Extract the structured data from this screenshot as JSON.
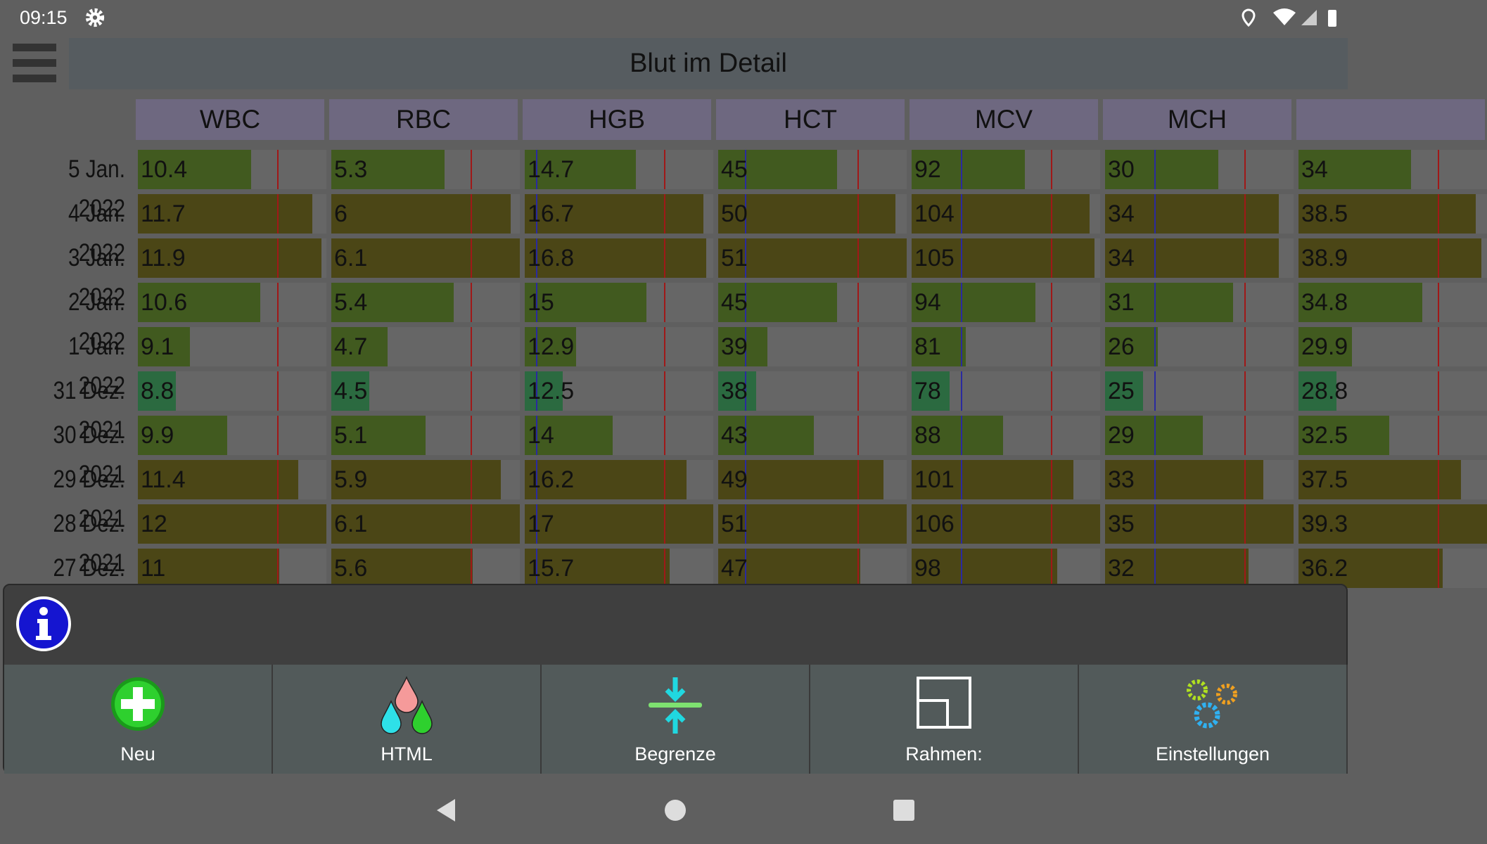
{
  "status_bar": {
    "time": "09:15"
  },
  "header": {
    "title": "Blut im Detail"
  },
  "table": {
    "columns": [
      "WBC",
      "RBC",
      "HGB",
      "HCT",
      "MCV",
      "MCH",
      null
    ],
    "rows": [
      {
        "date": "5 Jan. 2022",
        "values": [
          10.4,
          5.3,
          14.7,
          45,
          92,
          30,
          34
        ]
      },
      {
        "date": "4 Jan. 2022",
        "values": [
          11.7,
          6,
          16.7,
          50,
          104,
          34,
          38.5
        ]
      },
      {
        "date": "3 Jan. 2022",
        "values": [
          11.9,
          6.1,
          16.8,
          51,
          105,
          34,
          38.9
        ]
      },
      {
        "date": "2 Jan. 2022",
        "values": [
          10.6,
          5.4,
          15,
          45,
          94,
          31,
          34.8
        ]
      },
      {
        "date": "1 Jan. 2022",
        "values": [
          9.1,
          4.7,
          12.9,
          39,
          81,
          26,
          29.9
        ]
      },
      {
        "date": "31 Dez. 2021",
        "values": [
          8.8,
          4.5,
          12.5,
          38,
          78,
          25,
          28.8
        ]
      },
      {
        "date": "30 Dez. 2021",
        "values": [
          9.9,
          5.1,
          14,
          43,
          88,
          29,
          32.5
        ]
      },
      {
        "date": "29 Dez. 2021",
        "values": [
          11.4,
          5.9,
          16.2,
          49,
          101,
          33,
          37.5
        ]
      },
      {
        "date": "28 Dez. 2021",
        "values": [
          12,
          6.1,
          17,
          51,
          106,
          35,
          39.3
        ]
      },
      {
        "date": "27 Dez. 2021",
        "values": [
          11,
          5.6,
          15.7,
          47,
          98,
          32,
          36.2
        ]
      }
    ]
  },
  "toolbar": {
    "buttons": [
      "Neu",
      "HTML",
      "Begrenze",
      "Rahmen:",
      "Einstellungen"
    ]
  }
}
